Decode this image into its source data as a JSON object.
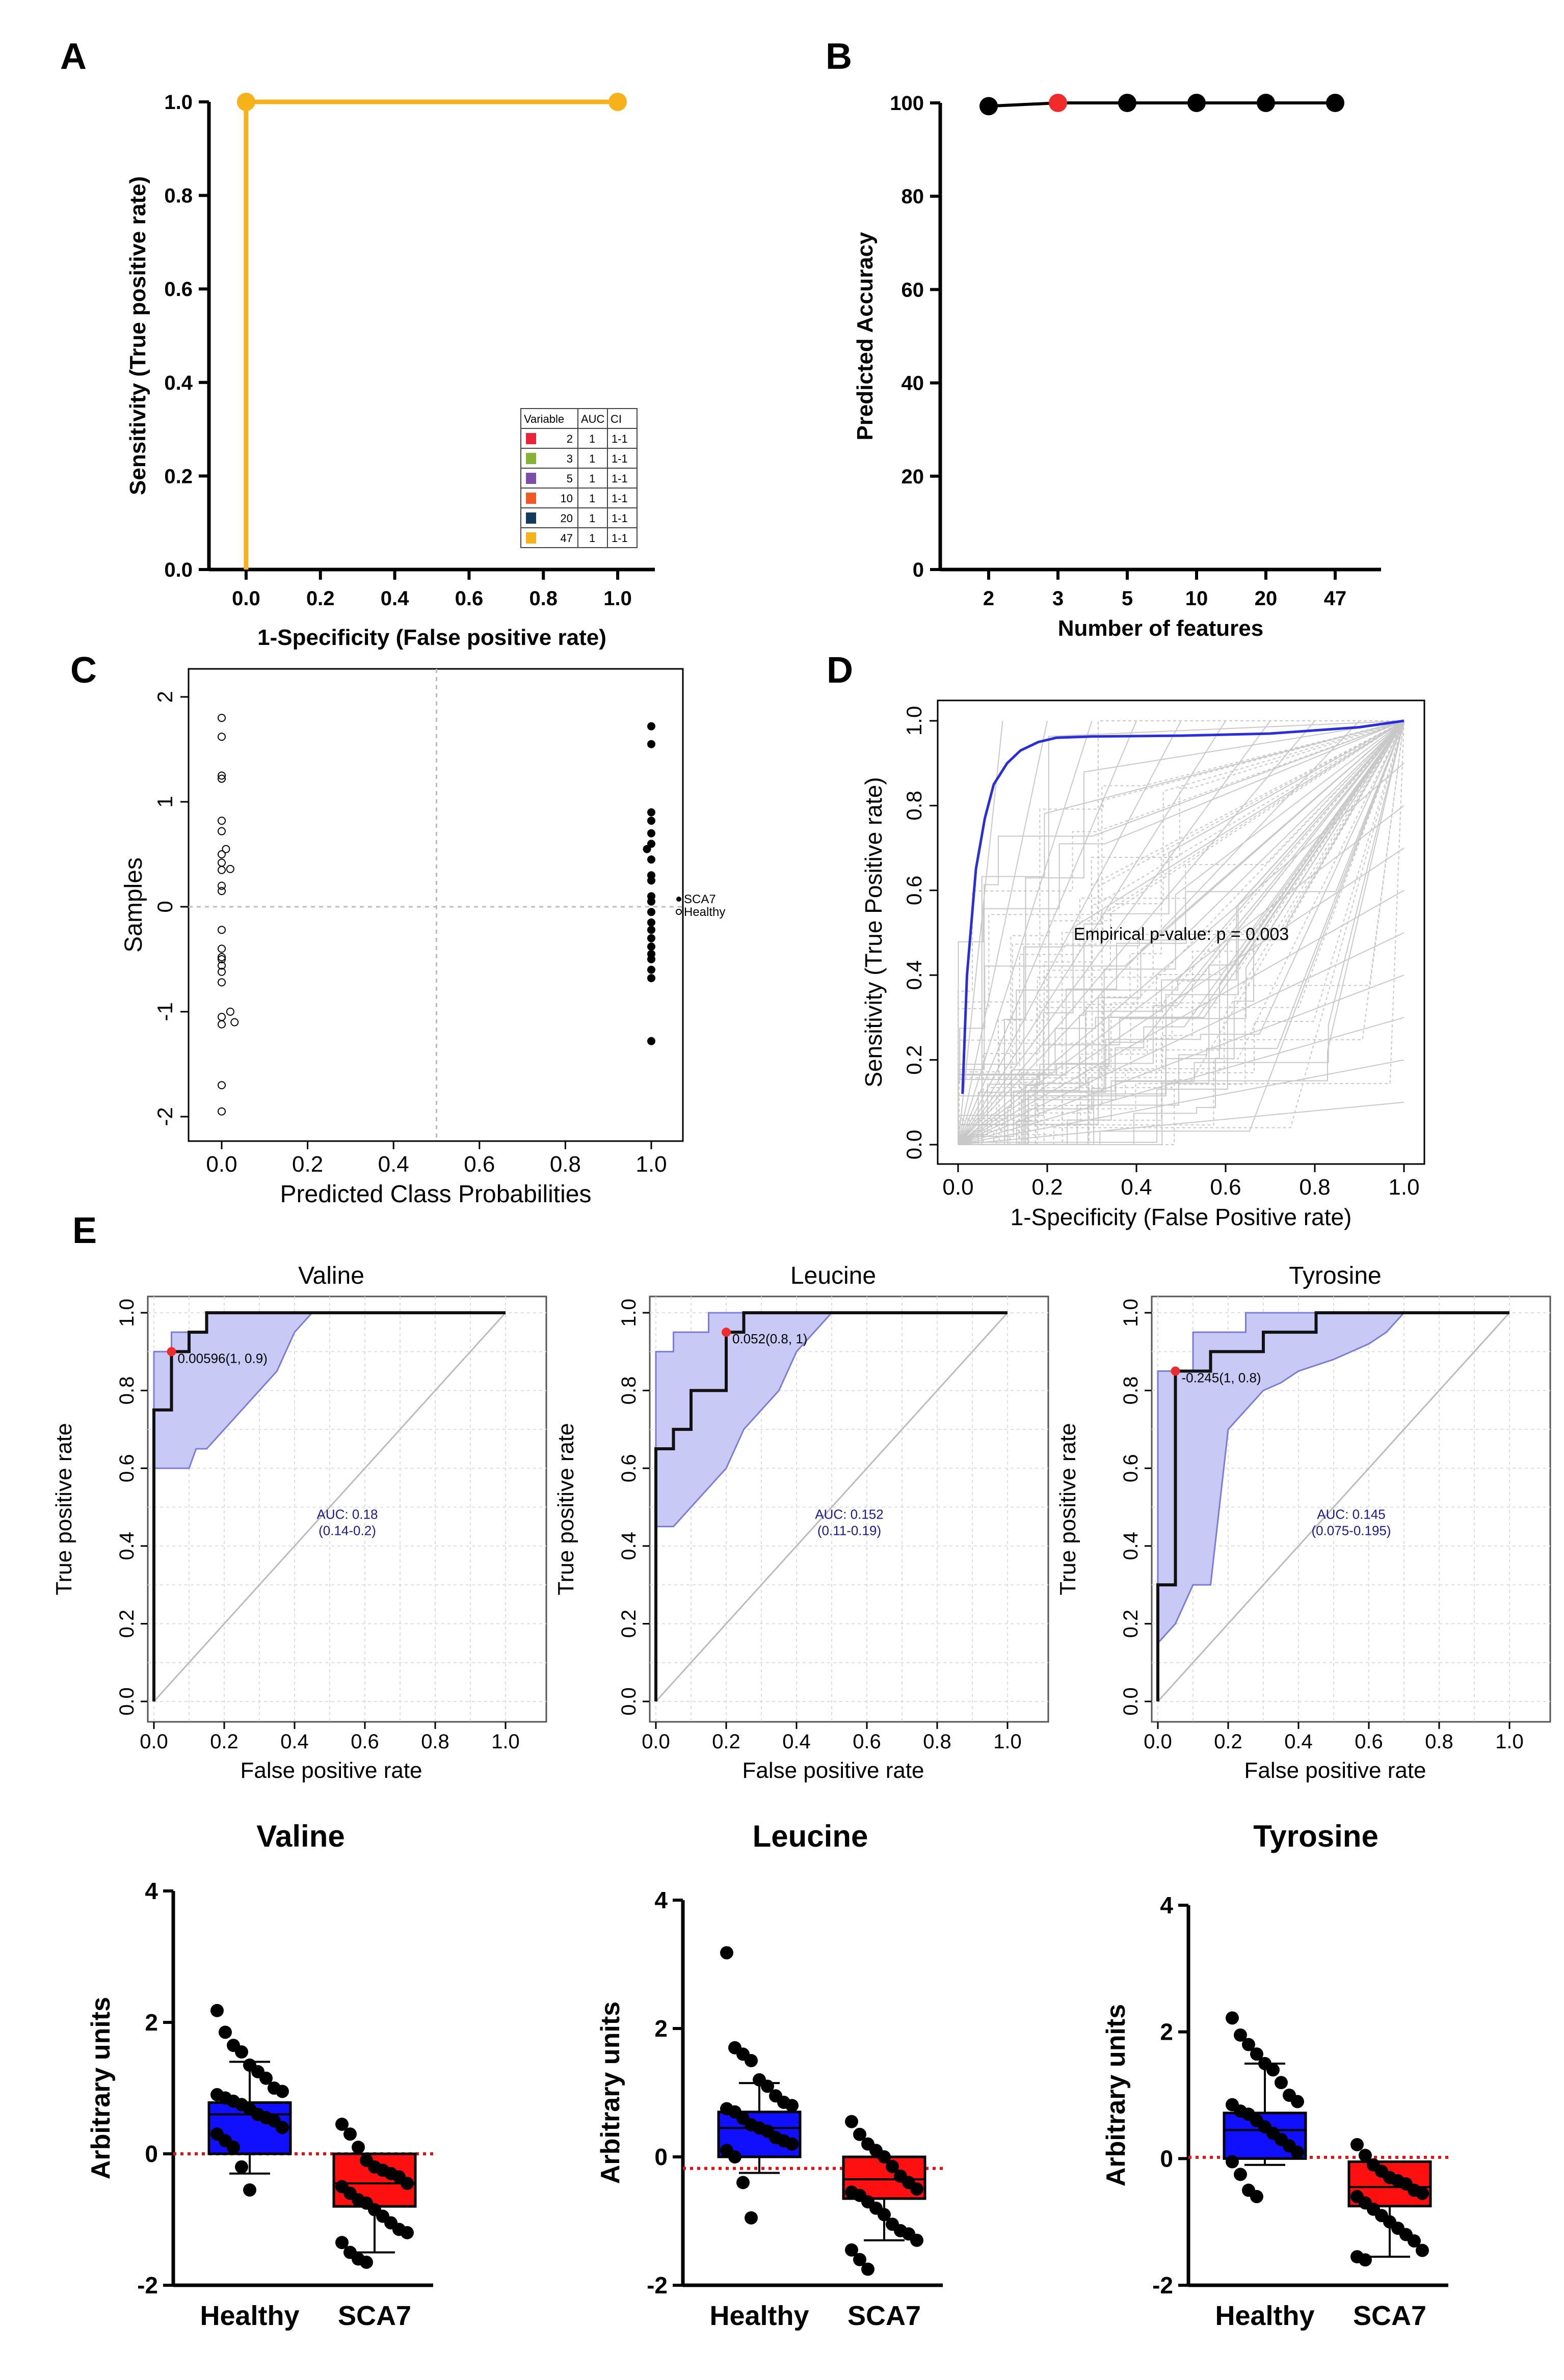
{
  "panel_labels": {
    "A": "A",
    "B": "B",
    "C": "C",
    "D": "D",
    "E": "E"
  },
  "colors": {
    "orange": "#f5b21b",
    "black": "#000000",
    "red": "#ef2b2b",
    "blue_line": "#2a2ed6",
    "ci_fill": "#c9c9f5",
    "ci_edge": "#7b7bd8",
    "grid": "#c8c8c8",
    "box_blue": "#1010ff",
    "box_red": "#ff1010",
    "dotted_red": "#e01010"
  },
  "chart_data": [
    {
      "id": "A",
      "type": "line",
      "title": "",
      "xlabel": "1-Specificity (False positive rate)",
      "ylabel": "Sensitivity (True positive rate)",
      "xlim": [
        -0.1,
        1.1
      ],
      "ylim": [
        0,
        1
      ],
      "xticks": [
        "0.0",
        "0.2",
        "0.4",
        "0.6",
        "0.8",
        "1.0"
      ],
      "yticks": [
        "0.0",
        "0.2",
        "0.4",
        "0.6",
        "0.8",
        "1.0"
      ],
      "series": [
        {
          "name": "ROC",
          "x": [
            0,
            0,
            1
          ],
          "y": [
            0,
            1,
            1
          ]
        }
      ],
      "markers": [
        {
          "x": 0,
          "y": 1
        },
        {
          "x": 1,
          "y": 1
        }
      ],
      "legend_table": {
        "headers": [
          "Variable",
          "AUC",
          "CI"
        ],
        "rows": [
          {
            "color": "#e8243b",
            "variable": "2",
            "auc": "1",
            "ci": "1-1"
          },
          {
            "color": "#86b334",
            "variable": "3",
            "auc": "1",
            "ci": "1-1"
          },
          {
            "color": "#7a4fa8",
            "variable": "5",
            "auc": "1",
            "ci": "1-1"
          },
          {
            "color": "#ee5a24",
            "variable": "10",
            "auc": "1",
            "ci": "1-1"
          },
          {
            "color": "#123b5e",
            "variable": "20",
            "auc": "1",
            "ci": "1-1"
          },
          {
            "color": "#f5b21b",
            "variable": "47",
            "auc": "1",
            "ci": "1-1"
          }
        ]
      }
    },
    {
      "id": "B",
      "type": "line",
      "title": "",
      "xlabel": "Number of features",
      "ylabel": "Predicted Accuracy",
      "ylim": [
        0,
        100
      ],
      "yticks": [
        "0",
        "20",
        "40",
        "60",
        "80",
        "100"
      ],
      "categories": [
        "2",
        "3",
        "5",
        "10",
        "20",
        "47"
      ],
      "values": [
        99.3,
        100,
        100,
        100,
        100,
        100
      ],
      "highlight_index": 1
    },
    {
      "id": "C",
      "type": "scatter",
      "title": "",
      "xlabel": "Predicted Class Probabilities",
      "ylabel": "Samples",
      "xlim": [
        0,
        1
      ],
      "ylim": [
        -2,
        2
      ],
      "xticks": [
        "0.0",
        "0.2",
        "0.4",
        "0.6",
        "0.8",
        "1.0"
      ],
      "yticks": [
        "-2",
        "-1",
        "0",
        "1",
        "2"
      ],
      "legend": [
        "SCA7",
        "Healthy"
      ],
      "series": [
        {
          "name": "Healthy",
          "x": [
            0,
            0,
            0,
            0,
            0,
            0,
            0,
            0,
            0,
            0,
            0,
            0,
            0,
            0,
            0,
            0,
            0.02,
            0,
            0.03,
            0,
            0,
            0,
            0.02,
            0,
            0,
            0.01
          ],
          "y": [
            1.8,
            1.62,
            1.25,
            1.22,
            0.82,
            0.72,
            0.5,
            0.42,
            0.35,
            0.2,
            0.15,
            -0.22,
            -0.48,
            -0.56,
            -0.62,
            -0.72,
            -1.0,
            -1.05,
            -1.1,
            -1.12,
            -1.7,
            -1.95,
            0.36,
            -0.4,
            -0.5,
            0.55
          ]
        },
        {
          "name": "SCA7",
          "x": [
            1,
            1,
            1,
            1,
            1,
            1,
            1,
            1,
            1,
            1,
            1,
            1,
            1,
            1,
            1,
            1,
            1,
            1,
            1,
            1,
            0.99,
            1
          ],
          "y": [
            1.72,
            1.55,
            0.9,
            0.82,
            0.7,
            0.6,
            0.45,
            0.3,
            0.25,
            0.1,
            0.05,
            -0.05,
            -0.15,
            -0.22,
            -0.3,
            -0.38,
            -0.45,
            -0.5,
            -0.6,
            -0.68,
            0.55,
            -1.28
          ]
        }
      ]
    },
    {
      "id": "D",
      "type": "line",
      "title": "",
      "xlabel": "1-Specificity (False Positive rate)",
      "ylabel": "Sensitivity (True Positive rate)",
      "xlim": [
        0,
        1
      ],
      "ylim": [
        0,
        1
      ],
      "xticks": [
        "0.0",
        "0.2",
        "0.4",
        "0.6",
        "0.8",
        "1.0"
      ],
      "yticks": [
        "0.0",
        "0.2",
        "0.4",
        "0.6",
        "0.8",
        "1.0"
      ],
      "annotation": "Empirical p-value:  p = 0.003",
      "series": [
        {
          "name": "ROC",
          "x": [
            0.01,
            0.02,
            0.04,
            0.06,
            0.08,
            0.11,
            0.14,
            0.18,
            0.22,
            0.3,
            0.5,
            0.7,
            0.9,
            1.0
          ],
          "y": [
            0.12,
            0.4,
            0.65,
            0.77,
            0.85,
            0.9,
            0.93,
            0.95,
            0.96,
            0.963,
            0.965,
            0.97,
            0.985,
            1.0
          ]
        }
      ]
    },
    {
      "id": "E1",
      "type": "line",
      "title": "Valine",
      "xlabel": "False positive rate",
      "ylabel": "True positive rate",
      "xlim": [
        0,
        1
      ],
      "ylim": [
        0,
        1
      ],
      "xticks": [
        "0.0",
        "0.2",
        "0.4",
        "0.6",
        "0.8",
        "1.0"
      ],
      "yticks": [
        "0.0",
        "0.2",
        "0.4",
        "0.6",
        "0.8",
        "1.0"
      ],
      "roc": {
        "x": [
          0,
          0,
          0.05,
          0.05,
          0.1,
          0.1,
          0.15,
          0.15,
          0.25,
          0.25,
          1
        ],
        "y": [
          0,
          0.75,
          0.75,
          0.9,
          0.9,
          0.95,
          0.95,
          1,
          1,
          1,
          1
        ]
      },
      "ci_upper": {
        "x": [
          0,
          0,
          0.05,
          0.05,
          0.15,
          0.15,
          1
        ],
        "y": [
          0.6,
          0.9,
          0.9,
          0.95,
          0.95,
          1,
          1
        ]
      },
      "ci_lower": {
        "x": [
          0,
          0.05,
          0.1,
          0.12,
          0.15,
          0.2,
          0.25,
          0.3,
          0.35,
          0.4,
          0.45,
          1
        ],
        "y": [
          0.6,
          0.6,
          0.6,
          0.65,
          0.65,
          0.7,
          0.75,
          0.8,
          0.85,
          0.95,
          1,
          1
        ]
      },
      "threshold": {
        "x": 0.05,
        "y": 0.9,
        "label": "0.00596(1, 0.9)"
      },
      "auc_label": "AUC: 0.18",
      "auc_ci": "(0.14-0.2)"
    },
    {
      "id": "E2",
      "type": "line",
      "title": "Leucine",
      "xlabel": "False positive rate",
      "ylabel": "True positive rate",
      "xlim": [
        0,
        1
      ],
      "ylim": [
        0,
        1
      ],
      "xticks": [
        "0.0",
        "0.2",
        "0.4",
        "0.6",
        "0.8",
        "1.0"
      ],
      "yticks": [
        "0.0",
        "0.2",
        "0.4",
        "0.6",
        "0.8",
        "1.0"
      ],
      "roc": {
        "x": [
          0,
          0,
          0.05,
          0.05,
          0.1,
          0.1,
          0.2,
          0.2,
          0.25,
          0.25,
          1
        ],
        "y": [
          0,
          0.65,
          0.65,
          0.7,
          0.7,
          0.8,
          0.8,
          0.95,
          0.95,
          1,
          1
        ]
      },
      "ci_upper": {
        "x": [
          0,
          0,
          0.05,
          0.05,
          0.15,
          0.15,
          0.25,
          0.25,
          1
        ],
        "y": [
          0.45,
          0.9,
          0.9,
          0.95,
          0.95,
          1,
          1,
          1,
          1
        ]
      },
      "ci_lower": {
        "x": [
          0,
          0.05,
          0.1,
          0.15,
          0.2,
          0.25,
          0.3,
          0.35,
          0.4,
          0.45,
          0.5,
          1
        ],
        "y": [
          0.45,
          0.45,
          0.5,
          0.55,
          0.6,
          0.7,
          0.75,
          0.8,
          0.9,
          0.95,
          1,
          1
        ]
      },
      "threshold": {
        "x": 0.2,
        "y": 0.95,
        "label": "0.052(0.8, 1)"
      },
      "auc_label": "AUC: 0.152",
      "auc_ci": "(0.11-0.19)"
    },
    {
      "id": "E3",
      "type": "line",
      "title": "Tyrosine",
      "xlabel": "False positive rate",
      "ylabel": "True positive rate",
      "xlim": [
        0,
        1
      ],
      "ylim": [
        0,
        1
      ],
      "xticks": [
        "0.0",
        "0.2",
        "0.4",
        "0.6",
        "0.8",
        "1.0"
      ],
      "yticks": [
        "0.0",
        "0.2",
        "0.4",
        "0.6",
        "0.8",
        "1.0"
      ],
      "roc": {
        "x": [
          0,
          0,
          0.05,
          0.05,
          0.15,
          0.15,
          0.3,
          0.3,
          0.45,
          0.45,
          1
        ],
        "y": [
          0,
          0.3,
          0.3,
          0.85,
          0.85,
          0.9,
          0.9,
          0.95,
          0.95,
          1,
          1
        ]
      },
      "ci_upper": {
        "x": [
          0,
          0,
          0.1,
          0.1,
          0.25,
          0.25,
          0.45,
          0.45,
          1
        ],
        "y": [
          0.15,
          0.85,
          0.85,
          0.95,
          0.95,
          1,
          1,
          1,
          1
        ]
      },
      "ci_lower": {
        "x": [
          0,
          0.05,
          0.1,
          0.15,
          0.2,
          0.25,
          0.3,
          0.35,
          0.4,
          0.5,
          0.55,
          0.6,
          0.65,
          0.7,
          1
        ],
        "y": [
          0.15,
          0.2,
          0.3,
          0.3,
          0.7,
          0.75,
          0.8,
          0.82,
          0.85,
          0.88,
          0.9,
          0.92,
          0.95,
          1,
          1
        ]
      },
      "threshold": {
        "x": 0.05,
        "y": 0.85,
        "label": "-0.245(1, 0.8)"
      },
      "auc_label": "AUC: 0.145",
      "auc_ci": "(0.075-0.195)"
    },
    {
      "id": "F1",
      "type": "bar",
      "title": "Valine",
      "ylabel": "Arbitrary units",
      "categories": [
        "Healthy",
        "SCA7"
      ],
      "ylim": [
        -2,
        4
      ],
      "yticks": [
        "-2",
        "0",
        "2",
        "4"
      ],
      "box": [
        {
          "top": 0.78,
          "bottom": 0.0,
          "median": 0.6,
          "whisker_top": 1.4,
          "whisker_bottom": -0.3
        },
        {
          "top": 0.0,
          "bottom": -0.8,
          "median": -0.45,
          "whisker_top": -0.2,
          "whisker_bottom": -1.5
        }
      ],
      "points": [
        [
          2.18,
          1.85,
          1.65,
          1.55,
          1.35,
          1.25,
          1.15,
          1.0,
          0.95,
          0.9,
          0.85,
          0.8,
          0.75,
          0.68,
          0.6,
          0.55,
          0.5,
          0.4,
          0.3,
          0.2,
          0.1,
          -0.2,
          -0.55
        ],
        [
          0.45,
          0.3,
          0.1,
          -0.1,
          -0.2,
          -0.25,
          -0.3,
          -0.35,
          -0.45,
          -0.5,
          -0.6,
          -0.7,
          -0.75,
          -0.85,
          -0.95,
          -1.05,
          -1.15,
          -1.2,
          -1.35,
          -1.5,
          -1.6,
          -1.65
        ]
      ],
      "baseline": 0
    },
    {
      "id": "F2",
      "type": "bar",
      "title": "Leucine",
      "ylabel": "Arbitrary units",
      "categories": [
        "Healthy",
        "SCA7"
      ],
      "ylim": [
        -2,
        4
      ],
      "yticks": [
        "-2",
        "0",
        "2",
        "4"
      ],
      "box": [
        {
          "top": 0.7,
          "bottom": 0.0,
          "median": 0.45,
          "whisker_top": 1.15,
          "whisker_bottom": -0.25
        },
        {
          "top": 0.0,
          "bottom": -0.65,
          "median": -0.35,
          "whisker_top": -0.1,
          "whisker_bottom": -1.3
        }
      ],
      "points": [
        [
          3.18,
          1.7,
          1.6,
          1.5,
          1.2,
          1.1,
          0.95,
          0.85,
          0.8,
          0.75,
          0.7,
          0.6,
          0.5,
          0.45,
          0.4,
          0.3,
          0.25,
          0.2,
          0.1,
          0.0,
          -0.4,
          -0.95
        ],
        [
          0.55,
          0.35,
          0.2,
          0.1,
          0.0,
          -0.15,
          -0.3,
          -0.4,
          -0.5,
          -0.55,
          -0.6,
          -0.7,
          -0.8,
          -0.9,
          -1.05,
          -1.15,
          -1.2,
          -1.3,
          -1.45,
          -1.6,
          -1.75
        ]
      ],
      "baseline": -0.18
    },
    {
      "id": "F3",
      "type": "bar",
      "title": "Tyrosine",
      "ylabel": "Arbitrary units",
      "categories": [
        "Healthy",
        "SCA7"
      ],
      "ylim": [
        -2,
        4
      ],
      "yticks": [
        "-2",
        "0",
        "2",
        "4"
      ],
      "box": [
        {
          "top": 0.72,
          "bottom": 0.0,
          "median": 0.45,
          "whisker_top": 1.5,
          "whisker_bottom": -0.1
        },
        {
          "top": -0.05,
          "bottom": -0.75,
          "median": -0.45,
          "whisker_top": -0.05,
          "whisker_bottom": -1.55
        }
      ],
      "points": [
        [
          2.22,
          1.95,
          1.8,
          1.65,
          1.5,
          1.4,
          1.2,
          1.0,
          0.9,
          0.85,
          0.75,
          0.7,
          0.6,
          0.5,
          0.4,
          0.3,
          0.2,
          0.1,
          -0.05,
          -0.25,
          -0.5,
          -0.6
        ],
        [
          0.22,
          0.05,
          -0.1,
          -0.2,
          -0.3,
          -0.35,
          -0.4,
          -0.5,
          -0.55,
          -0.6,
          -0.7,
          -0.8,
          -0.9,
          -1.0,
          -1.1,
          -1.2,
          -1.3,
          -1.45,
          -1.55,
          -1.6
        ]
      ],
      "baseline": 0.02
    }
  ]
}
